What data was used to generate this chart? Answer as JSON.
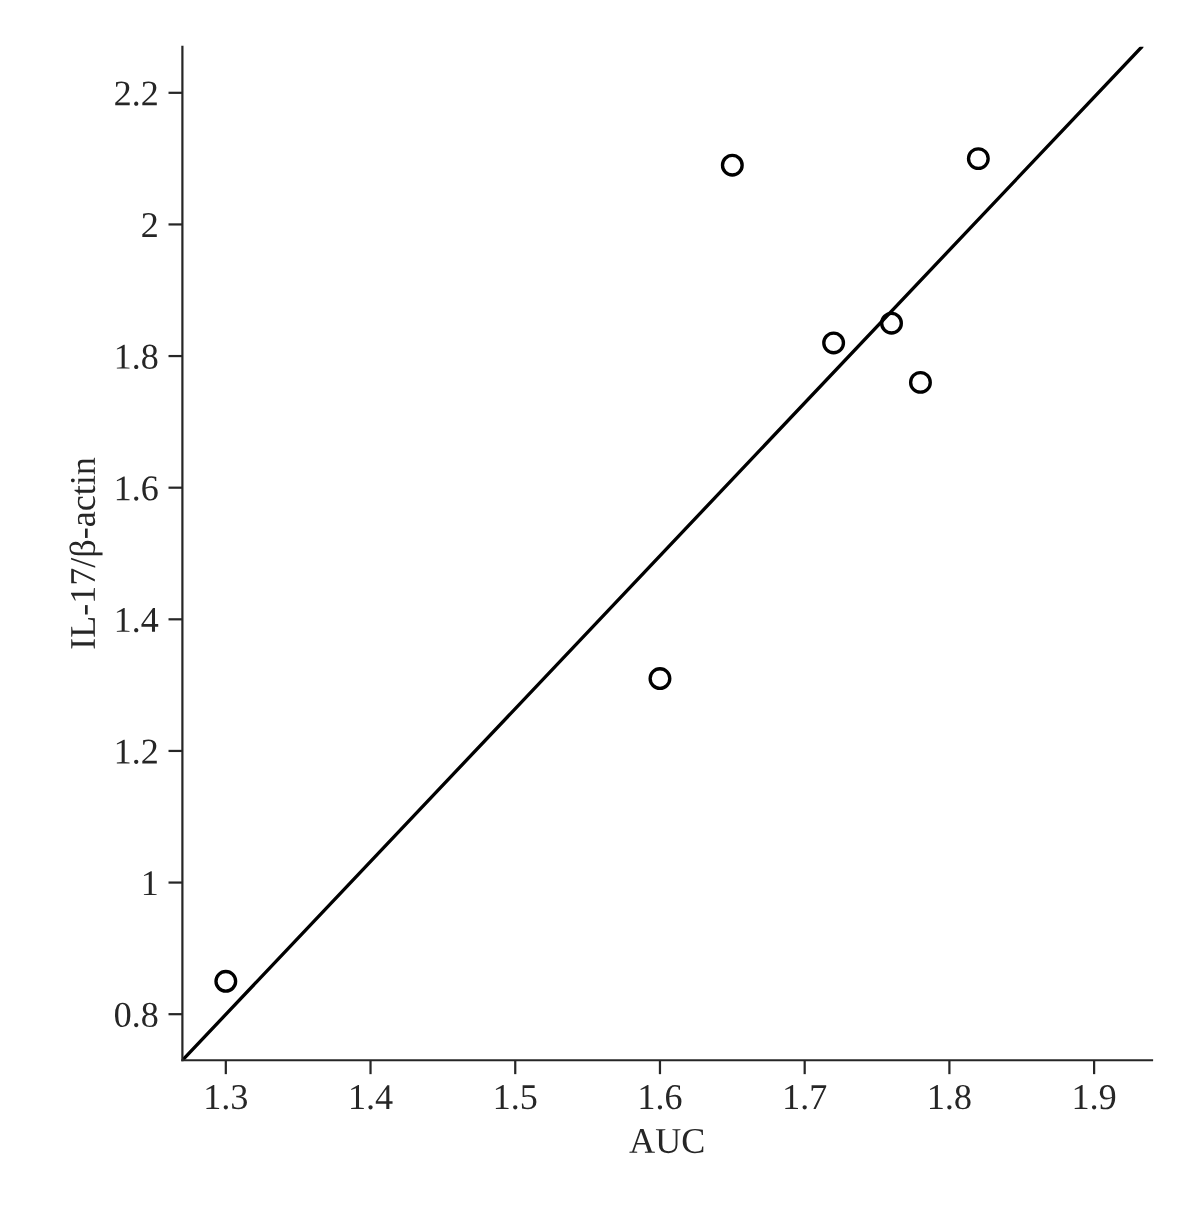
{
  "chart_data": {
    "type": "scatter",
    "xlabel": "AUC",
    "ylabel": "IL-17/β-actin",
    "xlim": [
      1.27,
      1.94
    ],
    "ylim": [
      0.73,
      2.27
    ],
    "xticks": [
      1.3,
      1.4,
      1.5,
      1.6,
      1.7,
      1.8,
      1.9
    ],
    "yticks": [
      0.8,
      1,
      1.2,
      1.4,
      1.6,
      1.8,
      2,
      2.2
    ],
    "grid": false,
    "series": [
      {
        "marker": "circle",
        "color": "#000000",
        "x": [
          1.3,
          1.6,
          1.65,
          1.72,
          1.76,
          1.78,
          1.82
        ],
        "values": [
          0.85,
          1.31,
          2.09,
          1.82,
          1.85,
          1.76,
          2.1
        ]
      },
      {
        "type": "line",
        "color": "#000000",
        "x": [
          1.27,
          1.933
        ],
        "values": [
          0.73,
          2.27
        ]
      }
    ]
  }
}
